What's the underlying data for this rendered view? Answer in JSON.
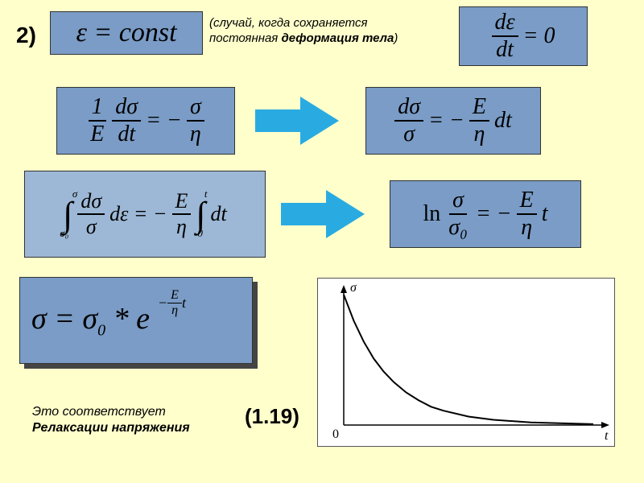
{
  "colors": {
    "page_bg": "#ffffcc",
    "box_bg": "#7a9cc6",
    "box_bg_light": "#9db8d6",
    "arrow_fill": "#29abe2",
    "text": "#000000",
    "shadow": "#444444",
    "graph_bg": "#ffffff",
    "graph_line": "#000000"
  },
  "fonts": {
    "label_family": "Arial, sans-serif",
    "formula_family": "Times New Roman, serif",
    "item_number_fontsize": 28,
    "caption_fontsize": 16,
    "formula_fontsize_med": 28,
    "formula_fontsize_large": 38,
    "graph_label_fontsize": 16
  },
  "header": {
    "item_number": "2)",
    "eq_const": "ε = const",
    "caption_line1": "(случай, когда сохраняется",
    "caption_line2": "постоянная ",
    "caption_line2_bold": "деформация тела",
    "caption_line2_close": ")",
    "eq_deps_dt": {
      "num": "dε",
      "den": "dt",
      "rhs": "= 0"
    }
  },
  "row1": {
    "eq_left": {
      "f1_num": "1",
      "f1_den": "E",
      "f2_num": "dσ",
      "f2_den": "dt",
      "rhs_prefix": "= −",
      "f3_num": "σ",
      "f3_den": "η"
    },
    "eq_right": {
      "f1_num": "dσ",
      "f1_den": "σ",
      "rhs_prefix": "= −",
      "f2_num": "E",
      "f2_den": "η",
      "suffix": "dt"
    }
  },
  "row2": {
    "eq_left": {
      "int1_upper": "σ",
      "int1_lower": "σ₀",
      "f1_num": "dσ",
      "f1_den": "σ",
      "after_frac": "dε = −",
      "f2_num": "E",
      "f2_den": "η",
      "int2_upper": "t",
      "int2_lower": "0",
      "suffix": "dt"
    },
    "eq_right": {
      "prefix": "ln",
      "f1_num": "σ",
      "f1_den": "σ₀",
      "mid": "= −",
      "f2_num": "E",
      "f2_den": "η",
      "suffix": "t"
    }
  },
  "row3": {
    "main_eq": {
      "lhs": "σ = σ",
      "sub0": "0",
      "star_e": " * e",
      "exp_prefix": "−",
      "exp_num": "E",
      "exp_den": "η",
      "exp_suffix": "t"
    },
    "eq_number": "(1.19)"
  },
  "footer": {
    "line1": "Это соответствует",
    "line2": "Релаксации напряжения"
  },
  "graph": {
    "type": "line",
    "x_label": "t",
    "y_label": "σ",
    "origin_label": "0",
    "xlim": [
      0,
      10
    ],
    "ylim": [
      0,
      1
    ],
    "curve_points": [
      [
        0.0,
        1.0
      ],
      [
        0.4,
        0.8
      ],
      [
        0.8,
        0.64
      ],
      [
        1.2,
        0.51
      ],
      [
        1.6,
        0.41
      ],
      [
        2.0,
        0.33
      ],
      [
        2.5,
        0.25
      ],
      [
        3.0,
        0.19
      ],
      [
        3.5,
        0.14
      ],
      [
        4.0,
        0.11
      ],
      [
        5.0,
        0.065
      ],
      [
        6.0,
        0.04
      ],
      [
        7.5,
        0.02
      ],
      [
        10.0,
        0.007
      ]
    ],
    "line_color": "#000000",
    "line_width": 2,
    "background_color": "#ffffff"
  }
}
